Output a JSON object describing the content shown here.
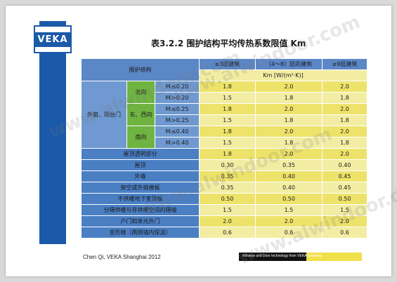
{
  "logo": {
    "text": "VEKA"
  },
  "title": "表3.2.2  围护结构平均传热系数限值 Km",
  "table": {
    "header": {
      "row_label": "围护结构",
      "col1": "≤3层建筑",
      "col2": "（4～8）层的建筑",
      "col3": "≥9层建筑",
      "unit": "Km  [W/(m²·K)]"
    },
    "window_label": "外窗、阳台门",
    "orientations": [
      "北向",
      "东、西向",
      "南向"
    ],
    "window_rows": [
      {
        "cond": "Mᵢ≤0.20",
        "v": [
          "1.8",
          "2.0",
          "2.0"
        ]
      },
      {
        "cond": "Mᵢ>0.20",
        "v": [
          "1.5",
          "1.8",
          "1.8"
        ]
      },
      {
        "cond": "Mᵢ≤0.25",
        "v": [
          "1.8",
          "2.0",
          "2.0"
        ]
      },
      {
        "cond": "Mᵢ>0.25",
        "v": [
          "1.5",
          "1.8",
          "1.8"
        ]
      },
      {
        "cond": "Mᵢ≤0.40",
        "v": [
          "1.8",
          "2.0",
          "2.0"
        ]
      },
      {
        "cond": "Mᵢ>0.40",
        "v": [
          "1.5",
          "1.8",
          "1.8"
        ]
      }
    ],
    "other_rows": [
      {
        "label": "屋顶透明部分",
        "v": [
          "1.8",
          "2.0",
          "2.0"
        ]
      },
      {
        "label": "屋顶",
        "v": [
          "0.30",
          "0.35",
          "0.40"
        ]
      },
      {
        "label": "外墙",
        "v": [
          "0.35",
          "0.40",
          "0.45"
        ]
      },
      {
        "label": "架空或外挑楼板",
        "v": [
          "0.35",
          "0.40",
          "0.45"
        ]
      },
      {
        "label": "不供暖地下室顶板",
        "v": [
          "0.50",
          "0.50",
          "0.50"
        ]
      },
      {
        "label": "分隔供暖与非供暖空间的隔墙",
        "v": [
          "1.5",
          "1.5",
          "1.5"
        ]
      },
      {
        "label": "户门和单元外门",
        "v": [
          "2.0",
          "2.0",
          "2.0"
        ]
      },
      {
        "label": "变形缝（两侧墙内保温）",
        "v": [
          "0.6",
          "0.6",
          "0.6"
        ]
      }
    ]
  },
  "footer": {
    "left": "Chen Qi, VEKA Shanghai 2012",
    "right": "Window and Door technology from VEKA Germany"
  },
  "watermark": "www.alwindoor.com",
  "colors": {
    "brand_blue": "#1b5aa8",
    "yellow": "#ede36a",
    "green": "#6fb341"
  }
}
